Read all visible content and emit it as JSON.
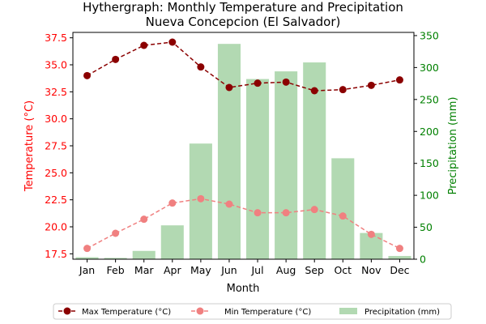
{
  "chart_data": {
    "type": "bar+line",
    "title": "Hythergraph: Monthly Temperature and Precipitation",
    "subtitle": "Nueva Concepcion (El Salvador)",
    "xlabel": "Month",
    "ylabel_left": "Temperature (°C)",
    "ylabel_right": "Precipitation (mm)",
    "categories": [
      "Jan",
      "Feb",
      "Mar",
      "Apr",
      "May",
      "Jun",
      "Jul",
      "Aug",
      "Sep",
      "Oct",
      "Nov",
      "Dec"
    ],
    "ylim_left": [
      17.0,
      38.0
    ],
    "yticks_left": [
      "17.5",
      "20.0",
      "22.5",
      "25.0",
      "27.5",
      "30.0",
      "32.5",
      "35.0",
      "37.5"
    ],
    "ylim_right": [
      0,
      355
    ],
    "yticks_right": [
      "0",
      "50",
      "100",
      "150",
      "200",
      "250",
      "300",
      "350"
    ],
    "series": [
      {
        "name": "Max Temperature (°C)",
        "type": "line",
        "axis": "left",
        "color": "#8b0000",
        "style": "dashed",
        "values": [
          34.0,
          35.5,
          36.8,
          37.1,
          34.8,
          32.9,
          33.3,
          33.4,
          32.6,
          32.7,
          33.1,
          33.6
        ]
      },
      {
        "name": "Min Temperature (°C)",
        "type": "line",
        "axis": "left",
        "color": "#f08080",
        "style": "dashed",
        "values": [
          18.0,
          19.4,
          20.7,
          22.2,
          22.6,
          22.1,
          21.3,
          21.3,
          21.6,
          21.0,
          19.3,
          18.0
        ]
      },
      {
        "name": "Precipitation (mm)",
        "type": "bar",
        "axis": "right",
        "color": "#b2d9b2",
        "values": [
          3,
          2,
          13,
          53,
          181,
          337,
          282,
          294,
          308,
          158,
          41,
          5
        ]
      }
    ],
    "left_axis_color": "#ff0000",
    "right_axis_color": "#008000",
    "legend_position": "bottom",
    "grid": false
  }
}
